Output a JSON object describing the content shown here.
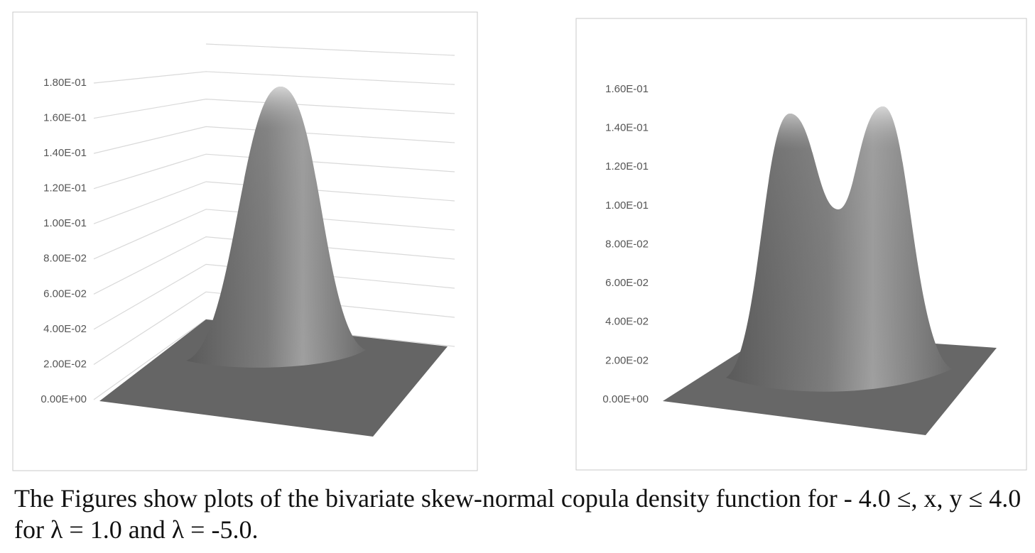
{
  "charts": [
    {
      "chart_data": {
        "type": "surface",
        "grid": true,
        "zlim": [
          0,
          0.2
        ],
        "zticks": [
          {
            "value": 0,
            "label": "0.00E+00"
          },
          {
            "value": 0.02,
            "label": "2.00E-02"
          },
          {
            "value": 0.04,
            "label": "4.00E-02"
          },
          {
            "value": 0.06,
            "label": "6.00E-02"
          },
          {
            "value": 0.08,
            "label": "8.00E-02"
          },
          {
            "value": 0.1,
            "label": "1.00E-01"
          },
          {
            "value": 0.12,
            "label": "1.20E-01"
          },
          {
            "value": 0.14,
            "label": "1.40E-01"
          },
          {
            "value": 0.16,
            "label": "1.60E-01"
          },
          {
            "value": 0.18,
            "label": "1.80E-01"
          }
        ]
      }
    },
    {
      "chart_data": {
        "type": "surface",
        "grid": false,
        "zlim": [
          0,
          0.16
        ],
        "zticks": [
          {
            "value": 0,
            "label": "0.00E+00"
          },
          {
            "value": 0.02,
            "label": "2.00E-02"
          },
          {
            "value": 0.04,
            "label": "4.00E-02"
          },
          {
            "value": 0.06,
            "label": "6.00E-02"
          },
          {
            "value": 0.08,
            "label": "8.00E-02"
          },
          {
            "value": 0.1,
            "label": "1.00E-01"
          },
          {
            "value": 0.12,
            "label": "1.20E-01"
          },
          {
            "value": 0.14,
            "label": "1.40E-01"
          },
          {
            "value": 0.16,
            "label": "1.60E-01"
          }
        ]
      }
    }
  ],
  "caption": "The Figures show plots of the bivariate skew-normal copula density function for - 4.0 ≤, x, y ≤ 4.0 for λ = 1.0 and λ = -5.0."
}
